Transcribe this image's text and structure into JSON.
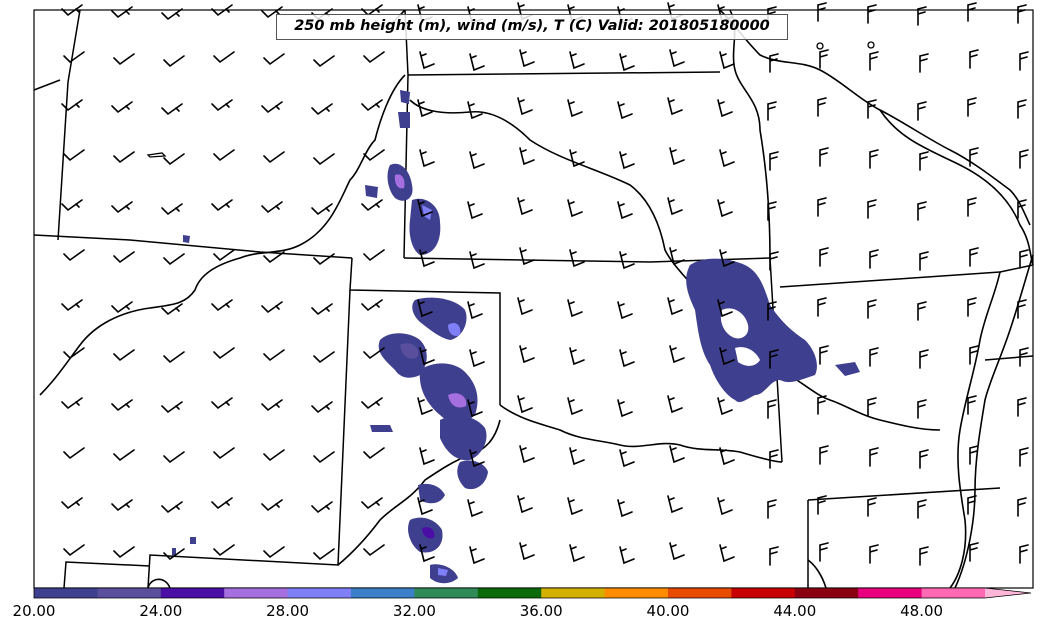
{
  "title": "250 mb height (m), wind (m/s), T (C) Valid: 201805180000",
  "colorbar": {
    "colors": [
      "#3f3f8f",
      "#5a4f9c",
      "#4b0fa6",
      "#a66fe0",
      "#7f7ff8",
      "#3b7fc8",
      "#2e8b57",
      "#0a6a0a",
      "#d4b000",
      "#ff8c00",
      "#e84a00",
      "#c80000",
      "#8b0010",
      "#e8007f",
      "#ff69b4",
      "#ffb6d9"
    ],
    "min": 20,
    "step": 2,
    "extend": "max",
    "tick_labels": [
      "20.00",
      "24.00",
      "28.00",
      "32.00",
      "36.00",
      "40.00",
      "44.00",
      "48.00"
    ]
  }
}
